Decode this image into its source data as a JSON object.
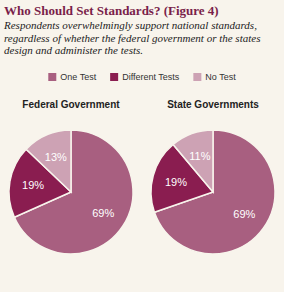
{
  "header": {
    "title": "Who Should Set Standards? (Figure 4)",
    "subtitle": "Respondents overwhelmingly support national standards, regardless of whether the federal government or the states design and administer the tests."
  },
  "chart_data": [
    {
      "type": "pie",
      "title": "Federal Government",
      "categories": [
        "One Test",
        "Different Tests",
        "No Test"
      ],
      "values": [
        69,
        19,
        13
      ],
      "value_labels": [
        "69%",
        "19%",
        "13%"
      ],
      "colors": [
        "#a85f80",
        "#8a1d50",
        "#cda2b4"
      ],
      "data_labels": true,
      "legend": "top"
    },
    {
      "type": "pie",
      "title": "State Governments",
      "categories": [
        "One Test",
        "Different Tests",
        "No Test"
      ],
      "values": [
        69,
        19,
        11
      ],
      "value_labels": [
        "69%",
        "19%",
        "11%"
      ],
      "colors": [
        "#a85f80",
        "#8a1d50",
        "#cda2b4"
      ],
      "data_labels": true
    }
  ]
}
